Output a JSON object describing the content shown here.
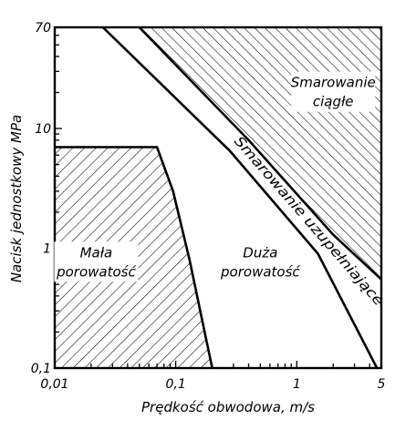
{
  "chart_data": {
    "type": "area",
    "xlabel": "Prędkość obwodowa, m/s",
    "ylabel": "Nacisk jednostkowy MPa",
    "xscale": "log",
    "yscale": "log",
    "xlim": [
      0.01,
      5
    ],
    "ylim": [
      0.1,
      70
    ],
    "x_ticks": [
      0.01,
      0.1,
      1,
      5
    ],
    "x_tick_labels": [
      "0,01",
      "0,1",
      "1",
      "5"
    ],
    "y_ticks": [
      0.1,
      1,
      10,
      70
    ],
    "y_tick_labels": [
      "0,1",
      "1",
      "10",
      "70"
    ],
    "regions": [
      {
        "label": "Mała porowatość",
        "line1": "Mała",
        "line2": "porowatość",
        "hatched": true,
        "boundary": [
          [
            0.01,
            7
          ],
          [
            0.07,
            7
          ],
          [
            0.095,
            3
          ],
          [
            0.13,
            0.8
          ],
          [
            0.2,
            0.1
          ]
        ],
        "label_at": [
          0.022,
          0.8
        ]
      },
      {
        "label": "Duża porowatość",
        "line1": "Duża",
        "line2": "porowatość",
        "hatched": false,
        "label_at": [
          0.5,
          0.8
        ]
      },
      {
        "label": "Smarowanie uzupełniające",
        "hatched": false,
        "boundary": [
          [
            0.025,
            70
          ],
          [
            0.28,
            6.5
          ],
          [
            1.5,
            0.9
          ],
          [
            4.6,
            0.1
          ]
        ],
        "label_path": [
          [
            0.28,
            8.5
          ],
          [
            5,
            0.3
          ]
        ]
      },
      {
        "label": "Smarowanie ciągłe",
        "line1": "Smarowanie",
        "line2": "ciągłe",
        "hatched": true,
        "boundary": [
          [
            0.05,
            70
          ],
          [
            0.4,
            8
          ],
          [
            2,
            1.3
          ],
          [
            5,
            0.55
          ]
        ],
        "label_at": [
          2,
          21
        ]
      }
    ]
  }
}
